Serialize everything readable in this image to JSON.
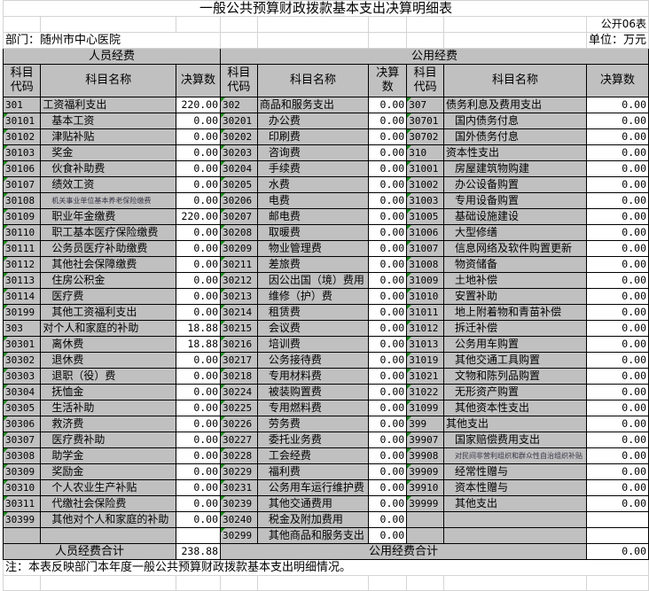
{
  "title": "一般公共预算财政拨款基本支出决算明细表",
  "table_no": "公开06表",
  "department": "部门：随州市中心医院",
  "unit": "单位：万元",
  "personnel_header": "人员经费",
  "public_header": "公用经费",
  "col_code": "科目代码",
  "col_name": "科目名称",
  "col_amount": "决算数",
  "personnel": [
    {
      "code": "301",
      "name": "工资福利支出",
      "amount": "220.00",
      "level": 1
    },
    {
      "code": "30101",
      "name": "基本工资",
      "amount": "0.00",
      "level": 2
    },
    {
      "code": "30102",
      "name": "津贴补贴",
      "amount": "0.00",
      "level": 2
    },
    {
      "code": "30103",
      "name": "奖金",
      "amount": "0.00",
      "level": 2
    },
    {
      "code": "30106",
      "name": "伙食补助费",
      "amount": "0.00",
      "level": 2
    },
    {
      "code": "30107",
      "name": "绩效工资",
      "amount": "0.00",
      "level": 2
    },
    {
      "code": "30108",
      "name": "机关事业单位基本养老保险缴费",
      "amount": "0.00",
      "level": 2,
      "small": true
    },
    {
      "code": "30109",
      "name": "职业年金缴费",
      "amount": "220.00",
      "level": 2
    },
    {
      "code": "30110",
      "name": "职工基本医疗保险缴费",
      "amount": "0.00",
      "level": 2
    },
    {
      "code": "30111",
      "name": "公务员医疗补助缴费",
      "amount": "0.00",
      "level": 2
    },
    {
      "code": "30112",
      "name": "其他社会保障缴费",
      "amount": "0.00",
      "level": 2
    },
    {
      "code": "30113",
      "name": "住房公积金",
      "amount": "0.00",
      "level": 2
    },
    {
      "code": "30114",
      "name": "医疗费",
      "amount": "0.00",
      "level": 2
    },
    {
      "code": "30199",
      "name": "其他工资福利支出",
      "amount": "0.00",
      "level": 2
    },
    {
      "code": "303",
      "name": "对个人和家庭的补助",
      "amount": "18.88",
      "level": 1
    },
    {
      "code": "30301",
      "name": "离休费",
      "amount": "18.88",
      "level": 2
    },
    {
      "code": "30302",
      "name": "退休费",
      "amount": "0.00",
      "level": 2
    },
    {
      "code": "30303",
      "name": "退职（役）费",
      "amount": "0.00",
      "level": 2
    },
    {
      "code": "30304",
      "name": "抚恤金",
      "amount": "0.00",
      "level": 2
    },
    {
      "code": "30305",
      "name": "生活补助",
      "amount": "0.00",
      "level": 2
    },
    {
      "code": "30306",
      "name": "救济费",
      "amount": "0.00",
      "level": 2
    },
    {
      "code": "30307",
      "name": "医疗费补助",
      "amount": "0.00",
      "level": 2
    },
    {
      "code": "30308",
      "name": "助学金",
      "amount": "0.00",
      "level": 2
    },
    {
      "code": "30309",
      "name": "奖励金",
      "amount": "0.00",
      "level": 2
    },
    {
      "code": "30310",
      "name": "个人农业生产补贴",
      "amount": "0.00",
      "level": 2
    },
    {
      "code": "30311",
      "name": "代缴社会保险费",
      "amount": "0.00",
      "level": 2
    },
    {
      "code": "30399",
      "name": "其他对个人和家庭的补助",
      "amount": "0.00",
      "level": 2
    },
    {
      "code": "",
      "name": "",
      "amount": "",
      "level": 0
    }
  ],
  "public_a": [
    {
      "code": "302",
      "name": "商品和服务支出",
      "amount": "0.00",
      "level": 1
    },
    {
      "code": "30201",
      "name": "办公费",
      "amount": "0.00",
      "level": 2
    },
    {
      "code": "30202",
      "name": "印刷费",
      "amount": "0.00",
      "level": 2
    },
    {
      "code": "30203",
      "name": "咨询费",
      "amount": "0.00",
      "level": 2
    },
    {
      "code": "30204",
      "name": "手续费",
      "amount": "0.00",
      "level": 2
    },
    {
      "code": "30205",
      "name": "水费",
      "amount": "0.00",
      "level": 2
    },
    {
      "code": "30206",
      "name": "电费",
      "amount": "0.00",
      "level": 2
    },
    {
      "code": "30207",
      "name": "邮电费",
      "amount": "0.00",
      "level": 2
    },
    {
      "code": "30208",
      "name": "取暖费",
      "amount": "0.00",
      "level": 2
    },
    {
      "code": "30209",
      "name": "物业管理费",
      "amount": "0.00",
      "level": 2
    },
    {
      "code": "30211",
      "name": "差旅费",
      "amount": "0.00",
      "level": 2
    },
    {
      "code": "30212",
      "name": "因公出国（境）费用",
      "amount": "0.00",
      "level": 2
    },
    {
      "code": "30213",
      "name": "维修（护）费",
      "amount": "0.00",
      "level": 2
    },
    {
      "code": "30214",
      "name": "租赁费",
      "amount": "0.00",
      "level": 2
    },
    {
      "code": "30215",
      "name": "会议费",
      "amount": "0.00",
      "level": 2
    },
    {
      "code": "30216",
      "name": "培训费",
      "amount": "0.00",
      "level": 2
    },
    {
      "code": "30217",
      "name": "公务接待费",
      "amount": "0.00",
      "level": 2
    },
    {
      "code": "30218",
      "name": "专用材料费",
      "amount": "0.00",
      "level": 2
    },
    {
      "code": "30224",
      "name": "被装购置费",
      "amount": "0.00",
      "level": 2
    },
    {
      "code": "30225",
      "name": "专用燃料费",
      "amount": "0.00",
      "level": 2
    },
    {
      "code": "30226",
      "name": "劳务费",
      "amount": "0.00",
      "level": 2
    },
    {
      "code": "30227",
      "name": "委托业务费",
      "amount": "0.00",
      "level": 2
    },
    {
      "code": "30228",
      "name": "工会经费",
      "amount": "0.00",
      "level": 2
    },
    {
      "code": "30229",
      "name": "福利费",
      "amount": "0.00",
      "level": 2
    },
    {
      "code": "30231",
      "name": "公务用车运行维护费",
      "amount": "0.00",
      "level": 2
    },
    {
      "code": "30239",
      "name": "其他交通费用",
      "amount": "0.00",
      "level": 2
    },
    {
      "code": "30240",
      "name": "税金及附加费用",
      "amount": "0.00",
      "level": 2
    },
    {
      "code": "30299",
      "name": "其他商品和服务支出",
      "amount": "0.00",
      "level": 2
    }
  ],
  "public_b": [
    {
      "code": "307",
      "name": "债务利息及费用支出",
      "amount": "0.00",
      "level": 1
    },
    {
      "code": "30701",
      "name": "国内债务付息",
      "amount": "0.00",
      "level": 2
    },
    {
      "code": "30702",
      "name": "国外债务付息",
      "amount": "0.00",
      "level": 2
    },
    {
      "code": "310",
      "name": "资本性支出",
      "amount": "0.00",
      "level": 1
    },
    {
      "code": "31001",
      "name": "房屋建筑物购建",
      "amount": "0.00",
      "level": 2
    },
    {
      "code": "31002",
      "name": "办公设备购置",
      "amount": "0.00",
      "level": 2
    },
    {
      "code": "31003",
      "name": "专用设备购置",
      "amount": "0.00",
      "level": 2
    },
    {
      "code": "31005",
      "name": "基础设施建设",
      "amount": "0.00",
      "level": 2
    },
    {
      "code": "31006",
      "name": "大型修缮",
      "amount": "0.00",
      "level": 2
    },
    {
      "code": "31007",
      "name": "信息网络及软件购置更新",
      "amount": "0.00",
      "level": 2
    },
    {
      "code": "31008",
      "name": "物资储备",
      "amount": "0.00",
      "level": 2
    },
    {
      "code": "31009",
      "name": "土地补偿",
      "amount": "0.00",
      "level": 2
    },
    {
      "code": "31010",
      "name": "安置补助",
      "amount": "0.00",
      "level": 2
    },
    {
      "code": "31011",
      "name": "地上附着物和青苗补偿",
      "amount": "0.00",
      "level": 2
    },
    {
      "code": "31012",
      "name": "拆迁补偿",
      "amount": "0.00",
      "level": 2
    },
    {
      "code": "31013",
      "name": "公务用车购置",
      "amount": "0.00",
      "level": 2
    },
    {
      "code": "31019",
      "name": "其他交通工具购置",
      "amount": "0.00",
      "level": 2
    },
    {
      "code": "31021",
      "name": "文物和陈列品购置",
      "amount": "0.00",
      "level": 2
    },
    {
      "code": "31022",
      "name": "无形资产购置",
      "amount": "0.00",
      "level": 2
    },
    {
      "code": "31099",
      "name": "其他资本性支出",
      "amount": "0.00",
      "level": 2
    },
    {
      "code": "399",
      "name": "其他支出",
      "amount": "0.00",
      "level": 1
    },
    {
      "code": "39907",
      "name": "国家赔偿费用支出",
      "amount": "0.00",
      "level": 2
    },
    {
      "code": "39908",
      "name": "对民间非营利组织和群众性自治组织补贴",
      "amount": "0.00",
      "level": 2,
      "small": true
    },
    {
      "code": "39909",
      "name": "经常性赠与",
      "amount": "0.00",
      "level": 2
    },
    {
      "code": "39910",
      "name": "资本性赠与",
      "amount": "0.00",
      "level": 2
    },
    {
      "code": "39999",
      "name": "其他支出",
      "amount": "0.00",
      "level": 2
    },
    {
      "code": "",
      "name": "",
      "amount": "",
      "level": 0
    },
    {
      "code": "",
      "name": "",
      "amount": "",
      "level": 0
    }
  ],
  "personnel_total_label": "人员经费合计",
  "personnel_total": "238.88",
  "public_total_label": "公用经费合计",
  "public_total": "0.00",
  "note": "注：本表反映部门本年度一般公共预算财政拨款基本支出明细情况。"
}
